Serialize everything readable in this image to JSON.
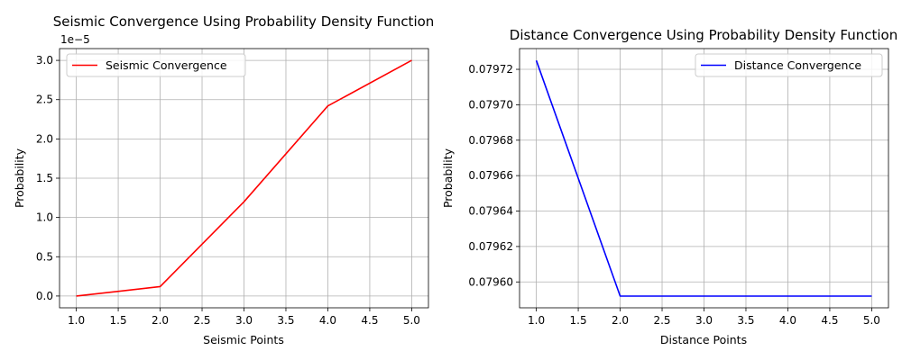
{
  "chart_data": [
    {
      "type": "line",
      "title": "Seismic Convergence Using Probability Density Function",
      "xlabel": "Seismic Points",
      "ylabel": "Probability",
      "offset_text": "1e−5",
      "x": [
        1,
        2,
        3,
        4,
        5
      ],
      "series": [
        {
          "name": "Seismic Convergence",
          "color": "#ff0000",
          "values": [
            0.0,
            0.12,
            1.2,
            2.42,
            3.0
          ]
        }
      ],
      "xlim": [
        0.8,
        5.2
      ],
      "ylim": [
        -0.15,
        3.15
      ],
      "xticks": [
        1.0,
        1.5,
        2.0,
        2.5,
        3.0,
        3.5,
        4.0,
        4.5,
        5.0
      ],
      "xtick_labels": [
        "1.0",
        "1.5",
        "2.0",
        "2.5",
        "3.0",
        "3.5",
        "4.0",
        "4.5",
        "5.0"
      ],
      "yticks": [
        0.0,
        0.5,
        1.0,
        1.5,
        2.0,
        2.5,
        3.0
      ],
      "ytick_labels": [
        "0.0",
        "0.5",
        "1.0",
        "1.5",
        "2.0",
        "2.5",
        "3.0"
      ],
      "grid": true,
      "legend_position": "top-left"
    },
    {
      "type": "line",
      "title": "Distance Convergence Using Probability Density Function",
      "xlabel": "Distance Points",
      "ylabel": "Probability",
      "offset_text": "",
      "x": [
        1,
        2,
        3,
        4,
        5
      ],
      "series": [
        {
          "name": "Distance Convergence",
          "color": "#0000ff",
          "values": [
            0.079725,
            0.079592,
            0.079592,
            0.079592,
            0.079592
          ]
        }
      ],
      "xlim": [
        0.8,
        5.2
      ],
      "ylim": [
        0.0795854,
        0.0797317
      ],
      "xticks": [
        1.0,
        1.5,
        2.0,
        2.5,
        3.0,
        3.5,
        4.0,
        4.5,
        5.0
      ],
      "xtick_labels": [
        "1.0",
        "1.5",
        "2.0",
        "2.5",
        "3.0",
        "3.5",
        "4.0",
        "4.5",
        "5.0"
      ],
      "yticks": [
        0.0796,
        0.07962,
        0.07964,
        0.07966,
        0.07968,
        0.0797,
        0.07972
      ],
      "ytick_labels": [
        "0.07960",
        "0.07962",
        "0.07964",
        "0.07966",
        "0.07968",
        "0.07970",
        "0.07972"
      ],
      "grid": true,
      "legend_position": "top-right"
    }
  ]
}
